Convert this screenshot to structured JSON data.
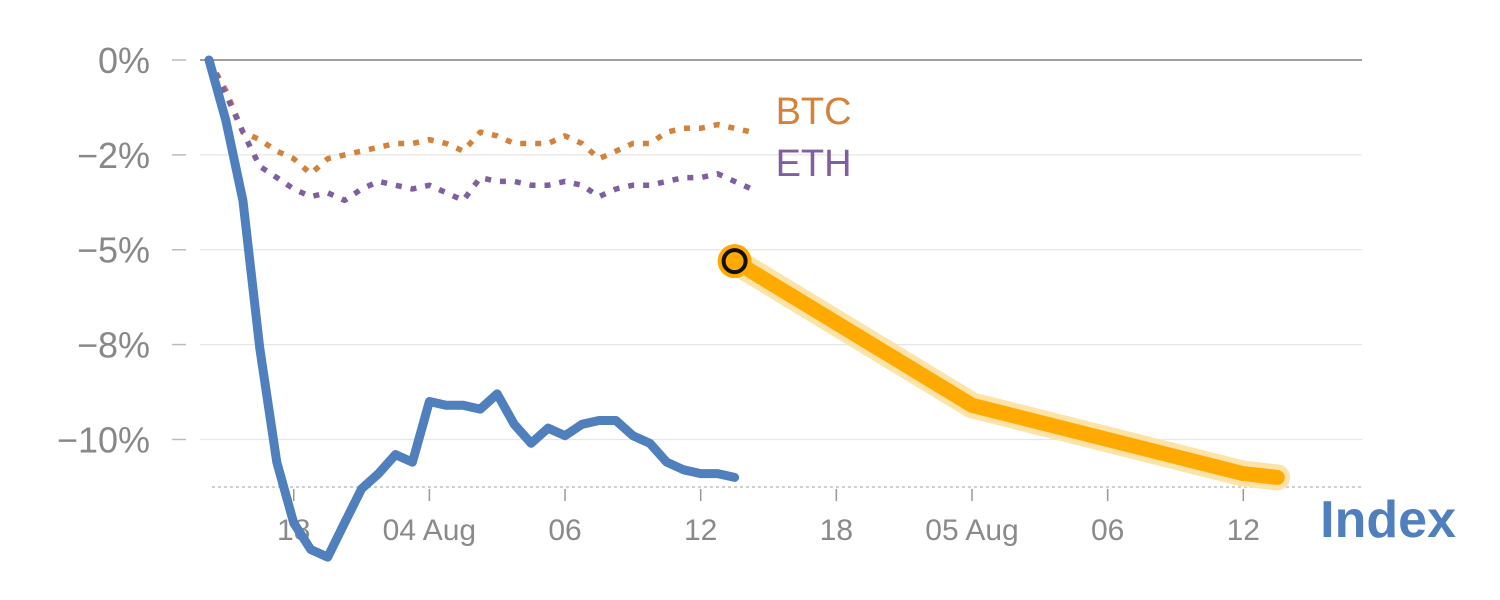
{
  "chart_data": {
    "type": "line",
    "title": "",
    "xlabel": "Index",
    "ylabel": "",
    "ylim": [
      -11.2,
      0
    ],
    "ytick_values": [
      0,
      -2.5,
      -5,
      -7.5,
      -10
    ],
    "ytick_labels": [
      "0%",
      "−2%",
      "−5%",
      "−8%",
      "−10%"
    ],
    "xlim": [
      0,
      34.5
    ],
    "xticks": [
      {
        "x": 3,
        "label": "18"
      },
      {
        "x": 7,
        "label": "04 Aug"
      },
      {
        "x": 11,
        "label": "06"
      },
      {
        "x": 15,
        "label": "12"
      },
      {
        "x": 19,
        "label": "18"
      },
      {
        "x": 23,
        "label": "05 Aug"
      },
      {
        "x": 27,
        "label": "06"
      },
      {
        "x": 31,
        "label": "12"
      }
    ],
    "grid": true,
    "series": [
      {
        "name": "BTC",
        "style": "dotted",
        "color": "#d4813a",
        "x": [
          0.5,
          1,
          1.5,
          2,
          2.5,
          3,
          3.5,
          4,
          4.5,
          5,
          5.5,
          6,
          6.5,
          7,
          7.5,
          8,
          8.5,
          9,
          9.5,
          10,
          10.5,
          11,
          11.5,
          12,
          12.5,
          13,
          13.5,
          14,
          14.5,
          15,
          15.5,
          16,
          16.5
        ],
        "values": [
          0,
          -0.8,
          -1.9,
          -2.1,
          -2.4,
          -2.6,
          -3.0,
          -2.6,
          -2.5,
          -2.4,
          -2.3,
          -2.2,
          -2.2,
          -2.1,
          -2.2,
          -2.4,
          -1.9,
          -2.0,
          -2.2,
          -2.2,
          -2.2,
          -2.0,
          -2.2,
          -2.6,
          -2.4,
          -2.2,
          -2.2,
          -1.9,
          -1.8,
          -1.8,
          -1.7,
          -1.8,
          -1.9
        ]
      },
      {
        "name": "ETH",
        "style": "dotted",
        "color": "#7f5fa0",
        "x": [
          0.5,
          1,
          1.5,
          2,
          2.5,
          3,
          3.5,
          4,
          4.5,
          5,
          5.5,
          6,
          6.5,
          7,
          7.5,
          8,
          8.5,
          9,
          9.5,
          10,
          10.5,
          11,
          11.5,
          12,
          12.5,
          13,
          13.5,
          14,
          14.5,
          15,
          15.5,
          16,
          16.5
        ],
        "values": [
          0,
          -0.9,
          -1.9,
          -2.8,
          -3.1,
          -3.4,
          -3.6,
          -3.5,
          -3.7,
          -3.4,
          -3.2,
          -3.3,
          -3.4,
          -3.3,
          -3.5,
          -3.7,
          -3.1,
          -3.2,
          -3.2,
          -3.3,
          -3.3,
          -3.2,
          -3.3,
          -3.6,
          -3.4,
          -3.3,
          -3.3,
          -3.2,
          -3.1,
          -3.1,
          -3.0,
          -3.2,
          -3.4
        ]
      },
      {
        "name": "Index",
        "style": "solid",
        "color": "#4f7fbc",
        "x": [
          0.5,
          1,
          1.5,
          2,
          2.5,
          3,
          3.5,
          4,
          4.5,
          5,
          5.5,
          6,
          6.5,
          7,
          7.5,
          8,
          8.5,
          9,
          9.5,
          10,
          10.5,
          11,
          11.5,
          12,
          12.5,
          13,
          13.5,
          14,
          14.5,
          15,
          15.5,
          16
        ],
        "values": [
          0,
          -1.6,
          -3.7,
          -7.6,
          -10.6,
          -12.2,
          -12.9,
          -13.1,
          -12.2,
          -11.3,
          -10.9,
          -10.4,
          -10.6,
          -9.0,
          -9.1,
          -9.1,
          -9.2,
          -8.8,
          -9.6,
          -10.1,
          -9.7,
          -9.9,
          -9.6,
          -9.5,
          -9.5,
          -9.9,
          -10.1,
          -10.6,
          -10.8,
          -10.9,
          -10.9,
          -11.0
        ]
      },
      {
        "name": "",
        "style": "projection",
        "color": "#ffaa00",
        "x": [
          16,
          23,
          31,
          32
        ],
        "values": [
          -5.3,
          -9.1,
          -10.9,
          -11.0
        ]
      }
    ]
  }
}
